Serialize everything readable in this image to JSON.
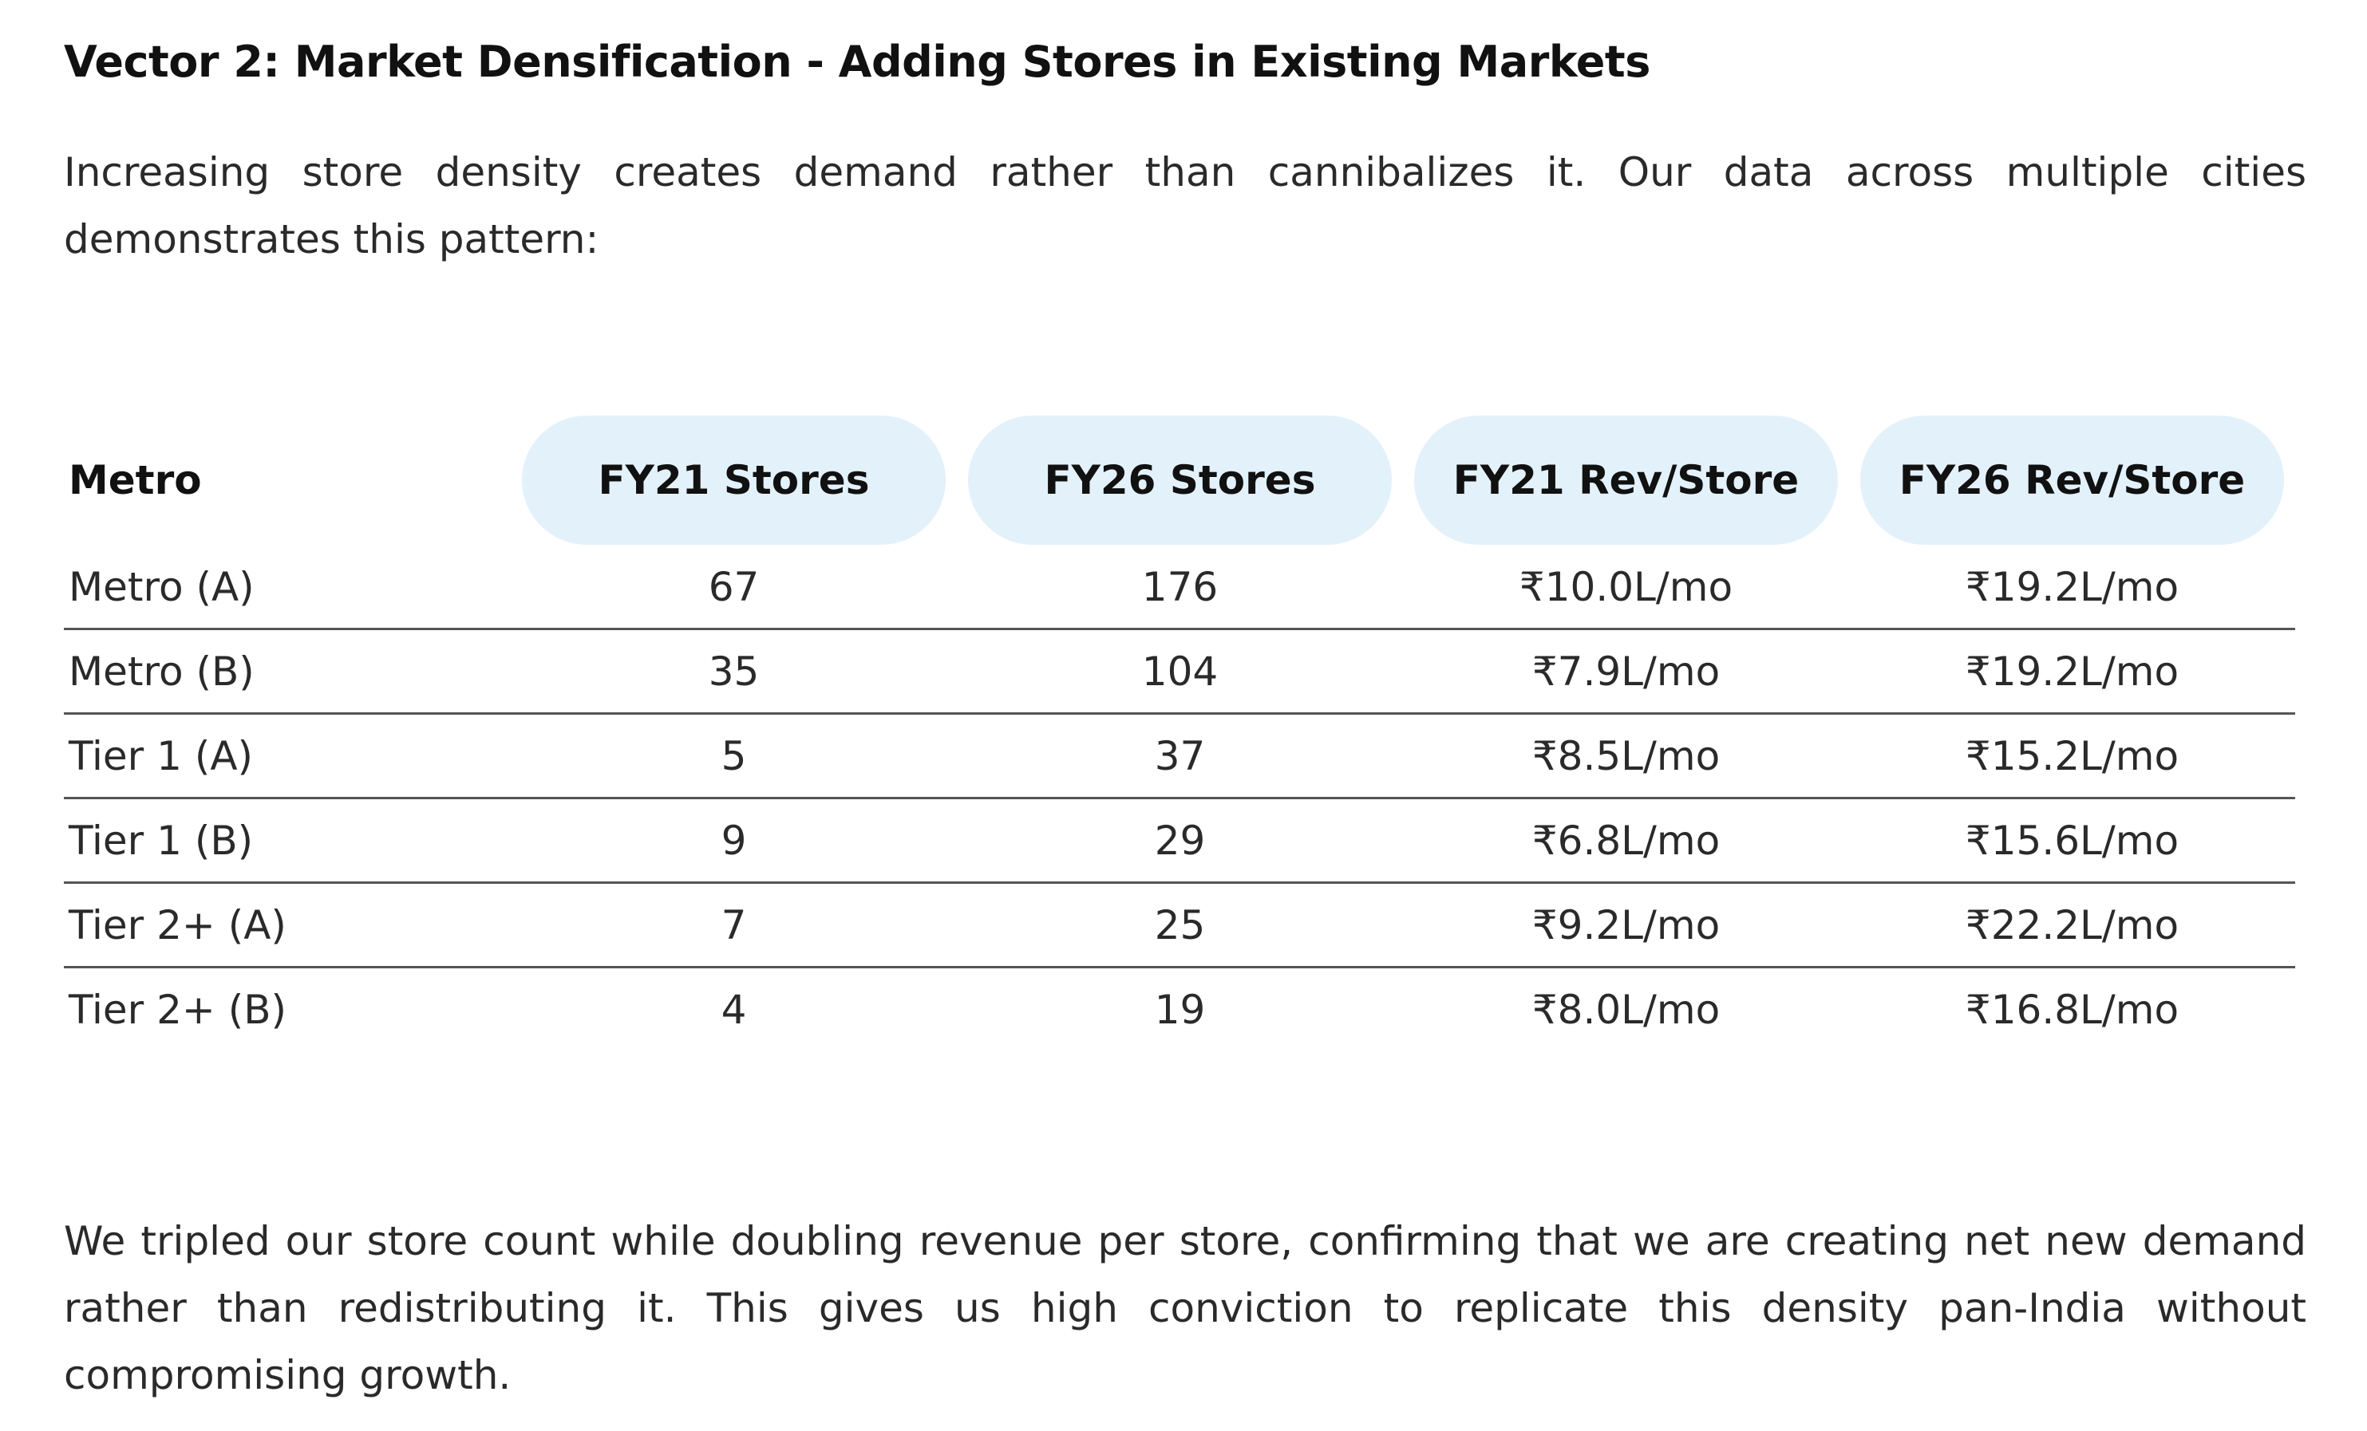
{
  "heading": "Vector 2: Market Densification - Adding Stores in Existing Markets",
  "intro": "Increasing store density creates demand rather than cannibalizes it. Our data across multiple cities demonstrates this pattern:",
  "table": {
    "headers": [
      "Metro",
      "FY21 Stores",
      "FY26 Stores",
      "FY21 Rev/Store",
      "FY26 Rev/Store"
    ],
    "rows": [
      [
        "Metro (A)",
        "67",
        "176",
        "₹10.0L/mo",
        "₹19.2L/mo"
      ],
      [
        "Metro (B)",
        "35",
        "104",
        "₹7.9L/mo",
        "₹19.2L/mo"
      ],
      [
        "Tier 1 (A)",
        "5",
        "37",
        "₹8.5L/mo",
        "₹15.2L/mo"
      ],
      [
        "Tier 1 (B)",
        "9",
        "29",
        "₹6.8L/mo",
        "₹15.6L/mo"
      ],
      [
        "Tier 2+ (A)",
        "7",
        "25",
        "₹9.2L/mo",
        "₹22.2L/mo"
      ],
      [
        "Tier 2+ (B)",
        "4",
        "19",
        "₹8.0L/mo",
        "₹16.8L/mo"
      ]
    ]
  },
  "outro": "We tripled our store count while doubling revenue per store, confirming that we are creating net new demand rather than redistributing it. This gives us high conviction to replicate this density pan-India without compromising growth.",
  "colors": {
    "header_pill_bg": "#e3f1fb",
    "row_divider": "#555555",
    "text": "#2a2a2a"
  }
}
